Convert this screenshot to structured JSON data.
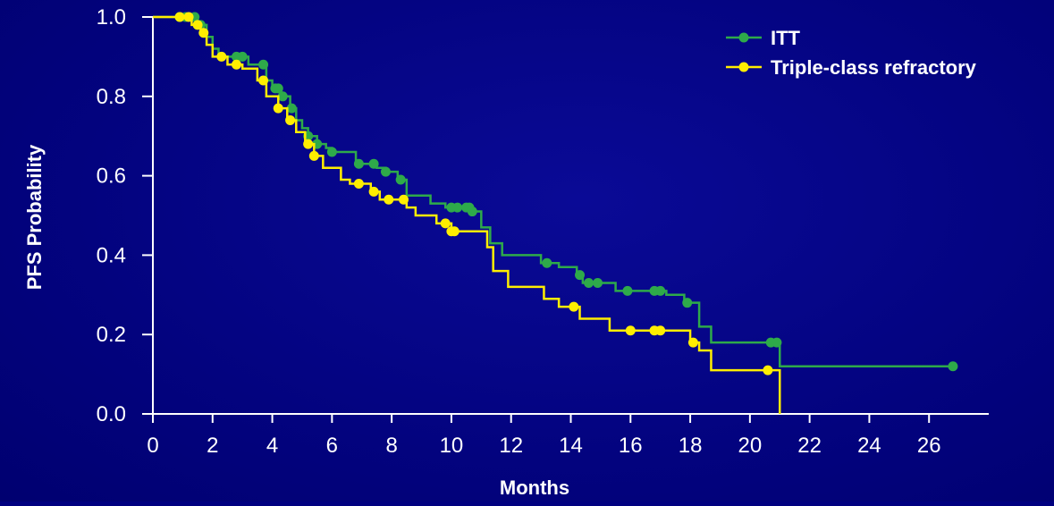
{
  "chart_data": {
    "type": "line",
    "step": true,
    "title": "",
    "xlabel": "Months",
    "ylabel": "PFS Probability",
    "xlim": [
      0,
      28
    ],
    "ylim": [
      0,
      1.0
    ],
    "x_ticks": [
      0,
      2,
      4,
      6,
      8,
      10,
      12,
      14,
      16,
      18,
      20,
      22,
      24,
      26
    ],
    "x_tick_labels": [
      "0",
      "2",
      "4",
      "6",
      "8",
      "10",
      "12",
      "14",
      "16",
      "18",
      "20",
      "22",
      "24",
      "26"
    ],
    "y_ticks": [
      0,
      0.2,
      0.4,
      0.6,
      0.8,
      1.0
    ],
    "y_tick_labels": [
      "0.0",
      "0.2",
      "0.4",
      "0.6",
      "0.8",
      "1.0"
    ],
    "grid": false,
    "legend_position": "top-right",
    "background_color": "#000080",
    "axis_color": "#ffffff",
    "series": [
      {
        "name": "ITT",
        "color": "#2eaa4a",
        "steps": [
          [
            0,
            1.0
          ],
          [
            1.5,
            0.98
          ],
          [
            1.8,
            0.95
          ],
          [
            2.0,
            0.92
          ],
          [
            2.2,
            0.9
          ],
          [
            3.2,
            0.88
          ],
          [
            3.8,
            0.84
          ],
          [
            4.0,
            0.82
          ],
          [
            4.3,
            0.8
          ],
          [
            4.6,
            0.77
          ],
          [
            4.8,
            0.74
          ],
          [
            5.0,
            0.72
          ],
          [
            5.2,
            0.7
          ],
          [
            5.5,
            0.68
          ],
          [
            5.8,
            0.67
          ],
          [
            6.0,
            0.66
          ],
          [
            6.8,
            0.63
          ],
          [
            7.5,
            0.62
          ],
          [
            7.8,
            0.61
          ],
          [
            8.2,
            0.59
          ],
          [
            8.5,
            0.55
          ],
          [
            9.3,
            0.53
          ],
          [
            9.8,
            0.52
          ],
          [
            10.7,
            0.51
          ],
          [
            11.0,
            0.47
          ],
          [
            11.3,
            0.43
          ],
          [
            11.7,
            0.4
          ],
          [
            13.0,
            0.38
          ],
          [
            13.6,
            0.37
          ],
          [
            14.2,
            0.35
          ],
          [
            14.4,
            0.33
          ],
          [
            15.5,
            0.31
          ],
          [
            17.2,
            0.3
          ],
          [
            17.8,
            0.28
          ],
          [
            18.3,
            0.22
          ],
          [
            18.7,
            0.18
          ],
          [
            21.0,
            0.12
          ],
          [
            26.8,
            0.12
          ]
        ],
        "censor_x": [
          0.9,
          1.1,
          1.4,
          1.6,
          2.8,
          3.0,
          3.7,
          4.1,
          4.2,
          4.35,
          4.65,
          5.2,
          5.5,
          6.0,
          6.9,
          7.4,
          7.8,
          8.3,
          10.0,
          10.2,
          10.5,
          10.6,
          10.7,
          13.2,
          14.3,
          14.6,
          14.9,
          15.9,
          16.8,
          17.0,
          17.9,
          20.7,
          20.9,
          26.8
        ]
      },
      {
        "name": "Triple-class refractory",
        "color": "#ffee00",
        "steps": [
          [
            0,
            1.0
          ],
          [
            1.3,
            0.98
          ],
          [
            1.6,
            0.96
          ],
          [
            1.8,
            0.93
          ],
          [
            2.0,
            0.9
          ],
          [
            2.5,
            0.88
          ],
          [
            3.0,
            0.87
          ],
          [
            3.5,
            0.84
          ],
          [
            3.8,
            0.8
          ],
          [
            4.2,
            0.77
          ],
          [
            4.5,
            0.74
          ],
          [
            4.8,
            0.71
          ],
          [
            5.1,
            0.68
          ],
          [
            5.4,
            0.65
          ],
          [
            5.7,
            0.62
          ],
          [
            6.3,
            0.59
          ],
          [
            6.6,
            0.58
          ],
          [
            7.3,
            0.56
          ],
          [
            7.6,
            0.54
          ],
          [
            8.5,
            0.52
          ],
          [
            8.8,
            0.5
          ],
          [
            9.5,
            0.48
          ],
          [
            10.0,
            0.46
          ],
          [
            11.2,
            0.42
          ],
          [
            11.4,
            0.36
          ],
          [
            11.9,
            0.32
          ],
          [
            13.1,
            0.29
          ],
          [
            13.6,
            0.27
          ],
          [
            14.3,
            0.24
          ],
          [
            15.3,
            0.21
          ],
          [
            18.0,
            0.18
          ],
          [
            18.3,
            0.16
          ],
          [
            18.7,
            0.11
          ],
          [
            21.0,
            0.0
          ]
        ],
        "censor_x": [
          0.9,
          1.2,
          1.5,
          1.7,
          2.3,
          2.8,
          3.7,
          4.2,
          4.6,
          5.2,
          5.4,
          6.9,
          7.4,
          7.9,
          8.4,
          9.8,
          10.0,
          10.1,
          14.1,
          16.0,
          16.8,
          17.0,
          18.1,
          20.6
        ]
      }
    ]
  }
}
